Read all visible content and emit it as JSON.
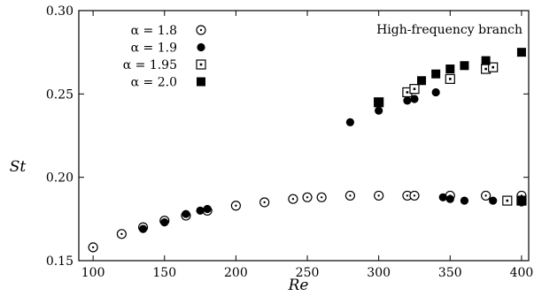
{
  "chart_data": {
    "type": "scatter",
    "xlabel": "Re",
    "ylabel": "St",
    "xlim": [
      90,
      405
    ],
    "ylim": [
      0.15,
      0.3
    ],
    "x_ticks": [
      "100",
      "150",
      "200",
      "250",
      "300",
      "350",
      "400"
    ],
    "y_ticks": [
      "0.15",
      "0.20",
      "0.25",
      "0.30"
    ],
    "annotation": "High-frequency branch",
    "legend_position": "top-left",
    "series": [
      {
        "name": "α = 1.8",
        "marker": "circle-dot",
        "points": [
          [
            100,
            0.158
          ],
          [
            120,
            0.166
          ],
          [
            135,
            0.17
          ],
          [
            150,
            0.174
          ],
          [
            165,
            0.177
          ],
          [
            180,
            0.18
          ],
          [
            200,
            0.183
          ],
          [
            220,
            0.185
          ],
          [
            240,
            0.187
          ],
          [
            250,
            0.188
          ],
          [
            260,
            0.188
          ],
          [
            280,
            0.189
          ],
          [
            300,
            0.189
          ],
          [
            320,
            0.189
          ],
          [
            325,
            0.189
          ],
          [
            350,
            0.189
          ],
          [
            375,
            0.189
          ],
          [
            400,
            0.189
          ]
        ]
      },
      {
        "name": "α = 1.9",
        "marker": "filled-circle",
        "points": [
          [
            135,
            0.169
          ],
          [
            150,
            0.173
          ],
          [
            165,
            0.178
          ],
          [
            175,
            0.18
          ],
          [
            180,
            0.181
          ],
          [
            280,
            0.233
          ],
          [
            300,
            0.24
          ],
          [
            320,
            0.246
          ],
          [
            325,
            0.247
          ],
          [
            340,
            0.251
          ],
          [
            345,
            0.188
          ],
          [
            350,
            0.187
          ],
          [
            360,
            0.186
          ],
          [
            380,
            0.186
          ],
          [
            400,
            0.185
          ]
        ]
      },
      {
        "name": "α = 1.95",
        "marker": "square-dot",
        "points": [
          [
            300,
            0.245
          ],
          [
            320,
            0.251
          ],
          [
            325,
            0.253
          ],
          [
            350,
            0.259
          ],
          [
            375,
            0.265
          ],
          [
            380,
            0.266
          ],
          [
            390,
            0.186
          ],
          [
            400,
            0.186
          ]
        ]
      },
      {
        "name": "α = 2.0",
        "marker": "filled-square",
        "points": [
          [
            300,
            0.245
          ],
          [
            330,
            0.258
          ],
          [
            340,
            0.262
          ],
          [
            350,
            0.265
          ],
          [
            360,
            0.267
          ],
          [
            375,
            0.27
          ],
          [
            400,
            0.275
          ],
          [
            400,
            0.186
          ]
        ]
      }
    ]
  }
}
